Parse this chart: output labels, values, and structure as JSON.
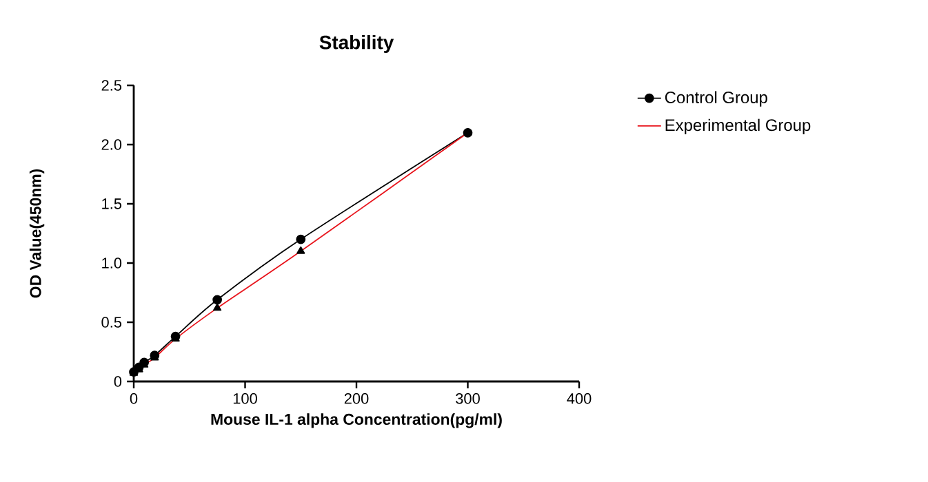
{
  "chart_data": {
    "type": "line",
    "title": "Stability",
    "xlabel": "Mouse IL-1 alpha Concentration(pg/ml)",
    "ylabel": "OD Value(450nm)",
    "x": [
      0,
      4.69,
      9.38,
      18.75,
      37.5,
      75,
      150,
      300
    ],
    "series": [
      {
        "name": "Control Group",
        "color": "#000000",
        "marker": "circle",
        "values": [
          0.08,
          0.12,
          0.16,
          0.22,
          0.38,
          0.69,
          1.2,
          2.1
        ]
      },
      {
        "name": "Experimental Group",
        "color": "#e8141c",
        "marker": "triangle",
        "values": [
          0.07,
          0.1,
          0.14,
          0.2,
          0.36,
          0.62,
          1.1,
          2.1
        ]
      }
    ],
    "xlim": [
      0,
      400
    ],
    "xticks": [
      0,
      100,
      200,
      300,
      400
    ],
    "ylim": [
      0,
      2.5
    ],
    "yticks": [
      0,
      0.5,
      {
        "value": 1,
        "label": "1.0"
      },
      1.5,
      {
        "value": 2,
        "label": "2.0"
      },
      2.5
    ],
    "legend": "right",
    "grid": false
  }
}
